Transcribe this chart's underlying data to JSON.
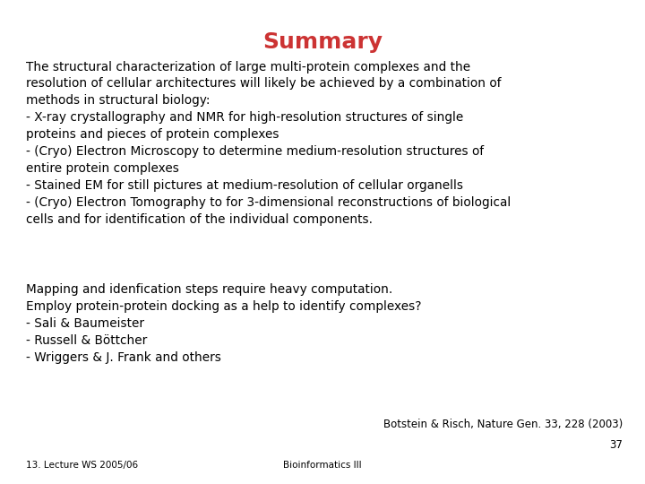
{
  "title": "Summary",
  "title_color": "#CC3333",
  "title_fontsize": 18,
  "background_color": "#FFFFFF",
  "text_color": "#000000",
  "body_fontsize": 9.8,
  "font_family": "DejaVu Sans",
  "paragraph1": "The structural characterization of large multi-protein complexes and the\nresolution of cellular architectures will likely be achieved by a combination of\nmethods in structural biology:\n- X-ray crystallography and NMR for high-resolution structures of single\nproteins and pieces of protein complexes\n- (Cryo) Electron Microscopy to determine medium-resolution structures of\nentire protein complexes\n- Stained EM for still pictures at medium-resolution of cellular organells\n- (Cryo) Electron Tomography to for 3-dimensional reconstructions of biological\ncells and for identification of the individual components.",
  "paragraph2": "Mapping and idenfication steps require heavy computation.\nEmploy protein-protein docking as a help to identify complexes?\n- Sali & Baumeister\n- Russell & Böttcher\n- Wriggers & J. Frank and others",
  "citation": "Botstein & Risch, Nature Gen. 33, 228 (2003)",
  "citation_number": "37",
  "footer_left": "13. Lecture WS 2005/06",
  "footer_center": "Bioinformatics III",
  "footer_fontsize": 7.5,
  "citation_fontsize": 8.5,
  "fig_width": 7.2,
  "fig_height": 5.4,
  "dpi": 100
}
